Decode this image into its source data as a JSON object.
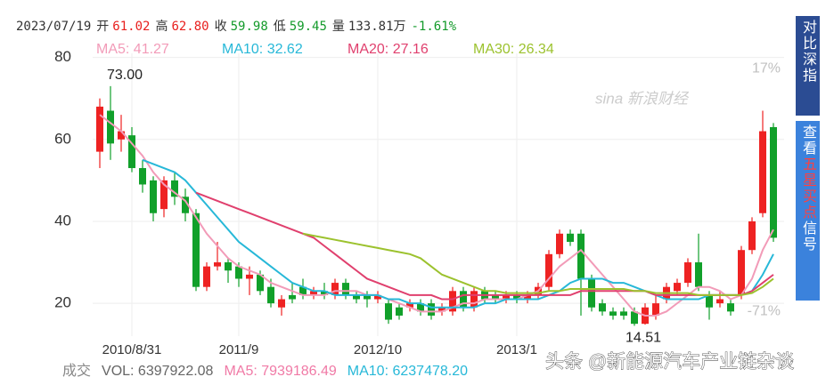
{
  "chart_data": {
    "type": "candlestick",
    "quote": {
      "date": "2023/07/19",
      "fields": [
        {
          "label": "开",
          "text": "61.02",
          "color": "#e8201e"
        },
        {
          "label": "高",
          "text": "62.80",
          "color": "#e8201e"
        },
        {
          "label": "收",
          "text": "59.98",
          "color": "#139a2a"
        },
        {
          "label": "低",
          "text": "59.45",
          "color": "#139a2a"
        },
        {
          "label": "量",
          "text": "133.81万",
          "color": "#333333"
        }
      ],
      "change": "-1.61%",
      "change_color": "#139a2a"
    },
    "categories": [
      null,
      null,
      null,
      "2010/8/31",
      null,
      null,
      null,
      null,
      null,
      null,
      null,
      null,
      null,
      "2011/9",
      null,
      null,
      null,
      null,
      null,
      null,
      null,
      null,
      null,
      null,
      null,
      null,
      "2012/10",
      null,
      null,
      null,
      null,
      null,
      null,
      null,
      null,
      null,
      null,
      null,
      null,
      "2013/1",
      null,
      null,
      null,
      null,
      null,
      null,
      null,
      null,
      null,
      null,
      null,
      null,
      null,
      null,
      null,
      null,
      null,
      null,
      null,
      null,
      null,
      null,
      null,
      null
    ],
    "candles": {
      "open": [
        57,
        67,
        60,
        61,
        53,
        50,
        43,
        50,
        46,
        42,
        24,
        29,
        30,
        29,
        26,
        27,
        24,
        19,
        22,
        24,
        22,
        23,
        22,
        25,
        22,
        22,
        21,
        20,
        19,
        19,
        20,
        20,
        18,
        18,
        23,
        19,
        23,
        22,
        21,
        22,
        21,
        22,
        24,
        32,
        37,
        37,
        26,
        20,
        18,
        18,
        18,
        15,
        17,
        21,
        23,
        25,
        30,
        22,
        20,
        20,
        22,
        33,
        42,
        63
      ],
      "high": [
        70,
        73,
        66,
        63,
        55,
        51,
        51,
        52,
        48,
        43,
        30,
        35,
        31,
        30,
        29,
        28,
        26,
        22,
        25,
        26,
        24,
        25,
        26,
        26,
        23,
        23,
        23,
        21,
        20,
        21,
        21,
        21,
        20,
        24,
        24,
        24,
        24,
        23,
        23,
        23,
        23,
        25,
        33,
        38,
        38,
        38,
        27,
        21,
        19,
        19,
        19,
        20,
        22,
        25,
        26,
        31,
        37,
        23,
        23,
        21,
        34,
        41,
        67,
        64
      ],
      "low": [
        53,
        55,
        57,
        52,
        47,
        40,
        41,
        44,
        40,
        23,
        23,
        28,
        25,
        24,
        22,
        22,
        19,
        17,
        20,
        21,
        21,
        21,
        21,
        21,
        20,
        19,
        20,
        15,
        16,
        18,
        17,
        16,
        17,
        17,
        18,
        18,
        20,
        20,
        20,
        20,
        20,
        21,
        23,
        31,
        34,
        17,
        18,
        17,
        16,
        16,
        14.51,
        14.8,
        16,
        20,
        22,
        24,
        23,
        16,
        19,
        17,
        21,
        32,
        41,
        35
      ],
      "close": [
        68,
        59,
        62,
        53,
        49,
        42,
        50,
        46,
        42,
        24,
        29,
        30,
        28,
        26,
        27,
        23,
        20,
        21,
        21,
        22,
        23,
        22,
        25,
        22,
        21,
        21,
        22,
        16,
        17,
        20,
        18,
        17,
        19,
        23,
        19,
        23,
        21,
        21,
        22,
        21,
        22,
        24,
        32,
        37,
        35,
        26,
        19,
        18,
        17,
        17,
        15,
        19,
        20,
        24,
        25,
        30,
        24,
        19,
        21,
        18,
        33,
        40,
        62,
        36
      ],
      "up_color": "#ee2222",
      "down_color": "#11a02a"
    },
    "series": [
      {
        "name": "MA5: 41.27",
        "color": "#f29bb8",
        "values": [
          66,
          64,
          62,
          59,
          56,
          52,
          49,
          47,
          45,
          41,
          37,
          34,
          31,
          29,
          28,
          27,
          25,
          24,
          23,
          22,
          22,
          22,
          23,
          23,
          23,
          22,
          22,
          21,
          20,
          19,
          18,
          18,
          18,
          19,
          20,
          20,
          21,
          21,
          21,
          21,
          22,
          23,
          26,
          29,
          31,
          33,
          30,
          27,
          24,
          21,
          18,
          17,
          17,
          18,
          20,
          22,
          24,
          24,
          23,
          21,
          22,
          26,
          33,
          38
        ]
      },
      {
        "name": "MA10: 32.62",
        "color": "#27b8d8",
        "values": [
          null,
          null,
          null,
          null,
          55,
          54,
          53,
          52,
          50,
          47,
          44,
          41,
          38,
          35,
          33,
          31,
          29,
          27,
          25,
          24,
          23,
          23,
          22,
          22,
          22,
          22,
          22,
          21,
          21,
          20,
          20,
          19,
          19,
          19,
          19,
          19,
          20,
          20,
          21,
          21,
          21,
          21,
          22,
          23,
          25,
          26,
          26,
          26,
          25,
          25,
          24,
          23,
          22,
          21,
          21,
          21,
          21,
          22,
          22,
          22,
          22,
          23,
          27,
          32
        ]
      },
      {
        "name": "MA20: 27.16",
        "color": "#e0406e",
        "values": [
          null,
          null,
          null,
          null,
          null,
          null,
          null,
          null,
          null,
          47,
          46,
          45,
          44,
          43,
          42,
          41,
          40,
          39,
          38,
          37,
          36,
          34,
          32,
          30,
          28,
          26,
          25,
          24,
          23,
          22,
          22,
          22,
          21,
          21,
          22,
          22,
          22,
          22,
          22,
          22,
          22,
          22,
          22,
          22,
          22,
          23,
          23,
          23,
          23,
          23,
          23,
          23,
          22,
          22,
          22,
          22,
          22,
          22,
          22,
          22,
          22,
          23,
          25,
          27
        ]
      },
      {
        "name": "MA30: 26.34",
        "color": "#9cc22e",
        "values": [
          null,
          null,
          null,
          null,
          null,
          null,
          null,
          null,
          null,
          null,
          null,
          null,
          null,
          null,
          null,
          null,
          null,
          null,
          null,
          37,
          36.5,
          36,
          35.5,
          35,
          34.5,
          34,
          33.5,
          33,
          32.5,
          32,
          31,
          29,
          27,
          26,
          25,
          24,
          23,
          23,
          22.5,
          22.5,
          22.5,
          22.5,
          23,
          23,
          23.5,
          23.5,
          23.5,
          23.5,
          23.5,
          23.5,
          23,
          23,
          22.5,
          22.5,
          22.5,
          22.5,
          22,
          22,
          22,
          22,
          22,
          22.5,
          24,
          26
        ]
      }
    ],
    "annotations": [
      {
        "text": "73.00",
        "value": 73
      },
      {
        "text": "14.51",
        "value": 14.51
      }
    ],
    "ylim": [
      12,
      81
    ],
    "yticks": [
      20,
      40,
      60,
      80
    ],
    "y2lim": [
      -80,
      22.5
    ],
    "y2ticks": [
      {
        "value": 17,
        "label": "17%"
      },
      {
        "value": -71,
        "label": "-71%"
      }
    ],
    "grid": true,
    "volume_readout": [
      {
        "text": "成交",
        "color": "#888888"
      },
      {
        "text": "VOL: 6397922.08",
        "color": "#666666"
      },
      {
        "text": "MA5: 7939186.49",
        "color": "#f07aa6"
      },
      {
        "text": "MA10: 6237478.20",
        "color": "#27b8d8"
      }
    ],
    "buttons": [
      {
        "parts": [
          {
            "text": "对比深指",
            "color": "#ffffff"
          }
        ],
        "background": "#2b4c93"
      },
      {
        "parts": [
          {
            "text": "查看",
            "color": "#ffffff"
          },
          {
            "text": "五星买点",
            "color": "#ff4040"
          },
          {
            "text": "信号",
            "color": "#ffffff"
          }
        ],
        "background": "#3b82dc"
      }
    ],
    "logo": "sina 新浪财经",
    "watermark": "头条 @新能源汽车产业链杂谈"
  }
}
